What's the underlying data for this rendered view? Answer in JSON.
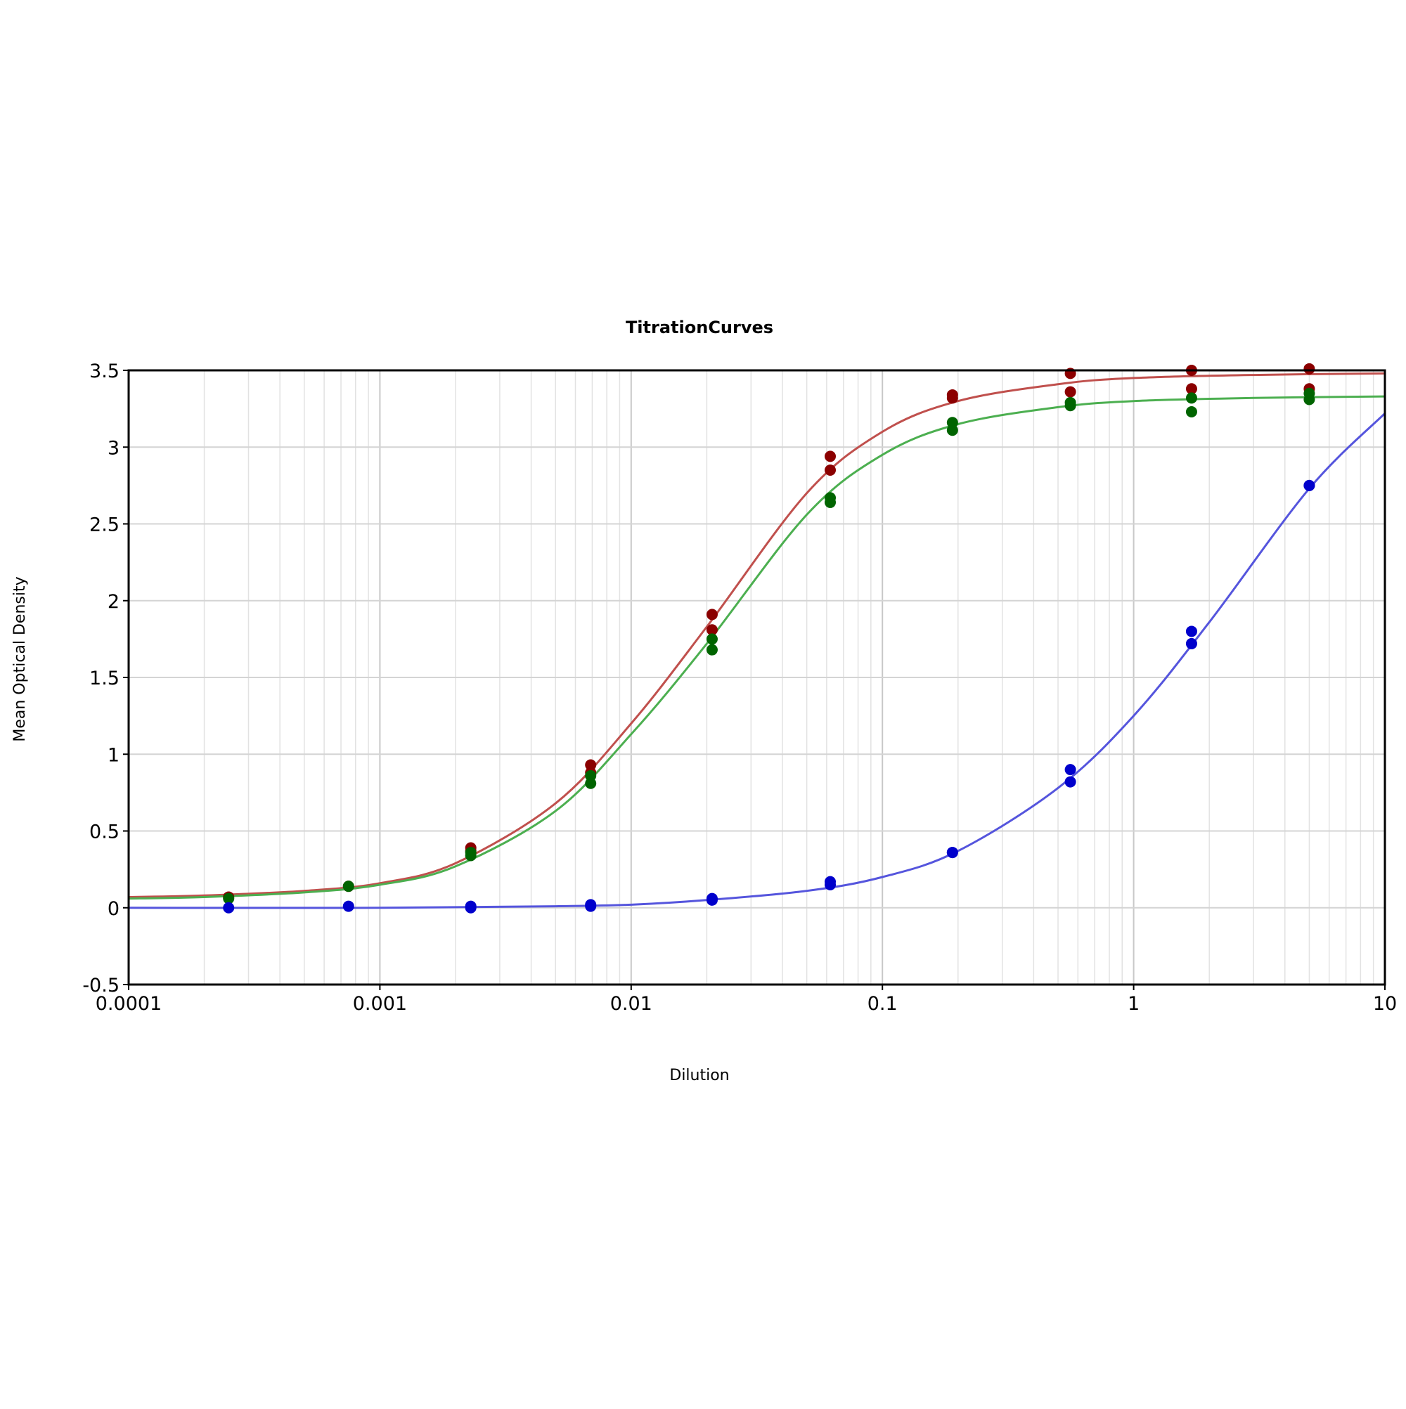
{
  "chart_data": {
    "type": "scatter",
    "title": "TitrationCurves",
    "xlabel": "Dilution",
    "ylabel": "Mean Optical Density",
    "x_scale": "log",
    "xlim": [
      0.0001,
      10
    ],
    "ylim": [
      -0.5,
      3.5
    ],
    "x_ticks": [
      0.0001,
      0.001,
      0.01,
      0.1,
      1,
      10
    ],
    "x_tick_labels": [
      "0.0001",
      "0.001",
      "0.01",
      "0.1",
      "1",
      "10"
    ],
    "y_ticks": [
      -0.5,
      0,
      0.5,
      1,
      1.5,
      2,
      2.5,
      3,
      3.5
    ],
    "y_tick_labels": [
      "-0.5",
      "0",
      "0.5",
      "1",
      "1.5",
      "2",
      "2.5",
      "3",
      "3.5"
    ],
    "grid": true,
    "series": [
      {
        "color": "#8b0000",
        "line_color": "#c0504d",
        "points": [
          [
            0.00025,
            0.07
          ],
          [
            0.00075,
            0.14
          ],
          [
            0.0023,
            0.39
          ],
          [
            0.0023,
            0.37
          ],
          [
            0.0069,
            0.93
          ],
          [
            0.0069,
            0.88
          ],
          [
            0.021,
            1.91
          ],
          [
            0.021,
            1.81
          ],
          [
            0.062,
            2.94
          ],
          [
            0.062,
            2.85
          ],
          [
            0.19,
            3.34
          ],
          [
            0.19,
            3.32
          ],
          [
            0.56,
            3.48
          ],
          [
            0.56,
            3.36
          ],
          [
            1.7,
            3.5
          ],
          [
            1.7,
            3.38
          ],
          [
            5.0,
            3.51
          ],
          [
            5.0,
            3.38
          ]
        ],
        "curve": [
          [
            0.0001,
            0.07
          ],
          [
            0.0002,
            0.08
          ],
          [
            0.0005,
            0.11
          ],
          [
            0.001,
            0.16
          ],
          [
            0.002,
            0.29
          ],
          [
            0.005,
            0.68
          ],
          [
            0.01,
            1.2
          ],
          [
            0.02,
            1.83
          ],
          [
            0.05,
            2.7
          ],
          [
            0.1,
            3.1
          ],
          [
            0.2,
            3.3
          ],
          [
            0.5,
            3.41
          ],
          [
            1,
            3.45
          ],
          [
            3,
            3.47
          ],
          [
            10,
            3.48
          ]
        ]
      },
      {
        "color": "#006400",
        "line_color": "#4caf50",
        "points": [
          [
            0.00025,
            0.06
          ],
          [
            0.00075,
            0.14
          ],
          [
            0.0023,
            0.36
          ],
          [
            0.0023,
            0.34
          ],
          [
            0.0069,
            0.86
          ],
          [
            0.0069,
            0.81
          ],
          [
            0.021,
            1.75
          ],
          [
            0.021,
            1.68
          ],
          [
            0.062,
            2.67
          ],
          [
            0.062,
            2.64
          ],
          [
            0.19,
            3.16
          ],
          [
            0.19,
            3.11
          ],
          [
            0.56,
            3.29
          ],
          [
            0.56,
            3.27
          ],
          [
            1.7,
            3.32
          ],
          [
            1.7,
            3.23
          ],
          [
            5.0,
            3.35
          ],
          [
            5.0,
            3.31
          ]
        ],
        "curve": [
          [
            0.0001,
            0.06
          ],
          [
            0.0002,
            0.07
          ],
          [
            0.0005,
            0.1
          ],
          [
            0.001,
            0.15
          ],
          [
            0.002,
            0.27
          ],
          [
            0.005,
            0.63
          ],
          [
            0.01,
            1.13
          ],
          [
            0.02,
            1.72
          ],
          [
            0.05,
            2.56
          ],
          [
            0.1,
            2.95
          ],
          [
            0.2,
            3.15
          ],
          [
            0.5,
            3.26
          ],
          [
            1,
            3.3
          ],
          [
            3,
            3.32
          ],
          [
            10,
            3.33
          ]
        ]
      },
      {
        "color": "#0000cc",
        "line_color": "#5555dd",
        "points": [
          [
            0.00025,
            0.0
          ],
          [
            0.00075,
            0.01
          ],
          [
            0.0023,
            0.0
          ],
          [
            0.0023,
            0.01
          ],
          [
            0.0069,
            0.02
          ],
          [
            0.0069,
            0.01
          ],
          [
            0.021,
            0.06
          ],
          [
            0.021,
            0.05
          ],
          [
            0.062,
            0.17
          ],
          [
            0.062,
            0.15
          ],
          [
            0.19,
            0.36
          ],
          [
            0.19,
            0.36
          ],
          [
            0.56,
            0.9
          ],
          [
            0.56,
            0.82
          ],
          [
            1.7,
            1.8
          ],
          [
            1.7,
            1.72
          ],
          [
            5.0,
            2.75
          ],
          [
            5.0,
            2.75
          ]
        ],
        "curve": [
          [
            0.0001,
            0.0
          ],
          [
            0.001,
            0.0
          ],
          [
            0.005,
            0.01
          ],
          [
            0.01,
            0.02
          ],
          [
            0.02,
            0.05
          ],
          [
            0.05,
            0.11
          ],
          [
            0.1,
            0.2
          ],
          [
            0.2,
            0.37
          ],
          [
            0.5,
            0.78
          ],
          [
            1,
            1.25
          ],
          [
            2,
            1.86
          ],
          [
            5,
            2.73
          ],
          [
            10,
            3.22
          ]
        ]
      }
    ]
  }
}
